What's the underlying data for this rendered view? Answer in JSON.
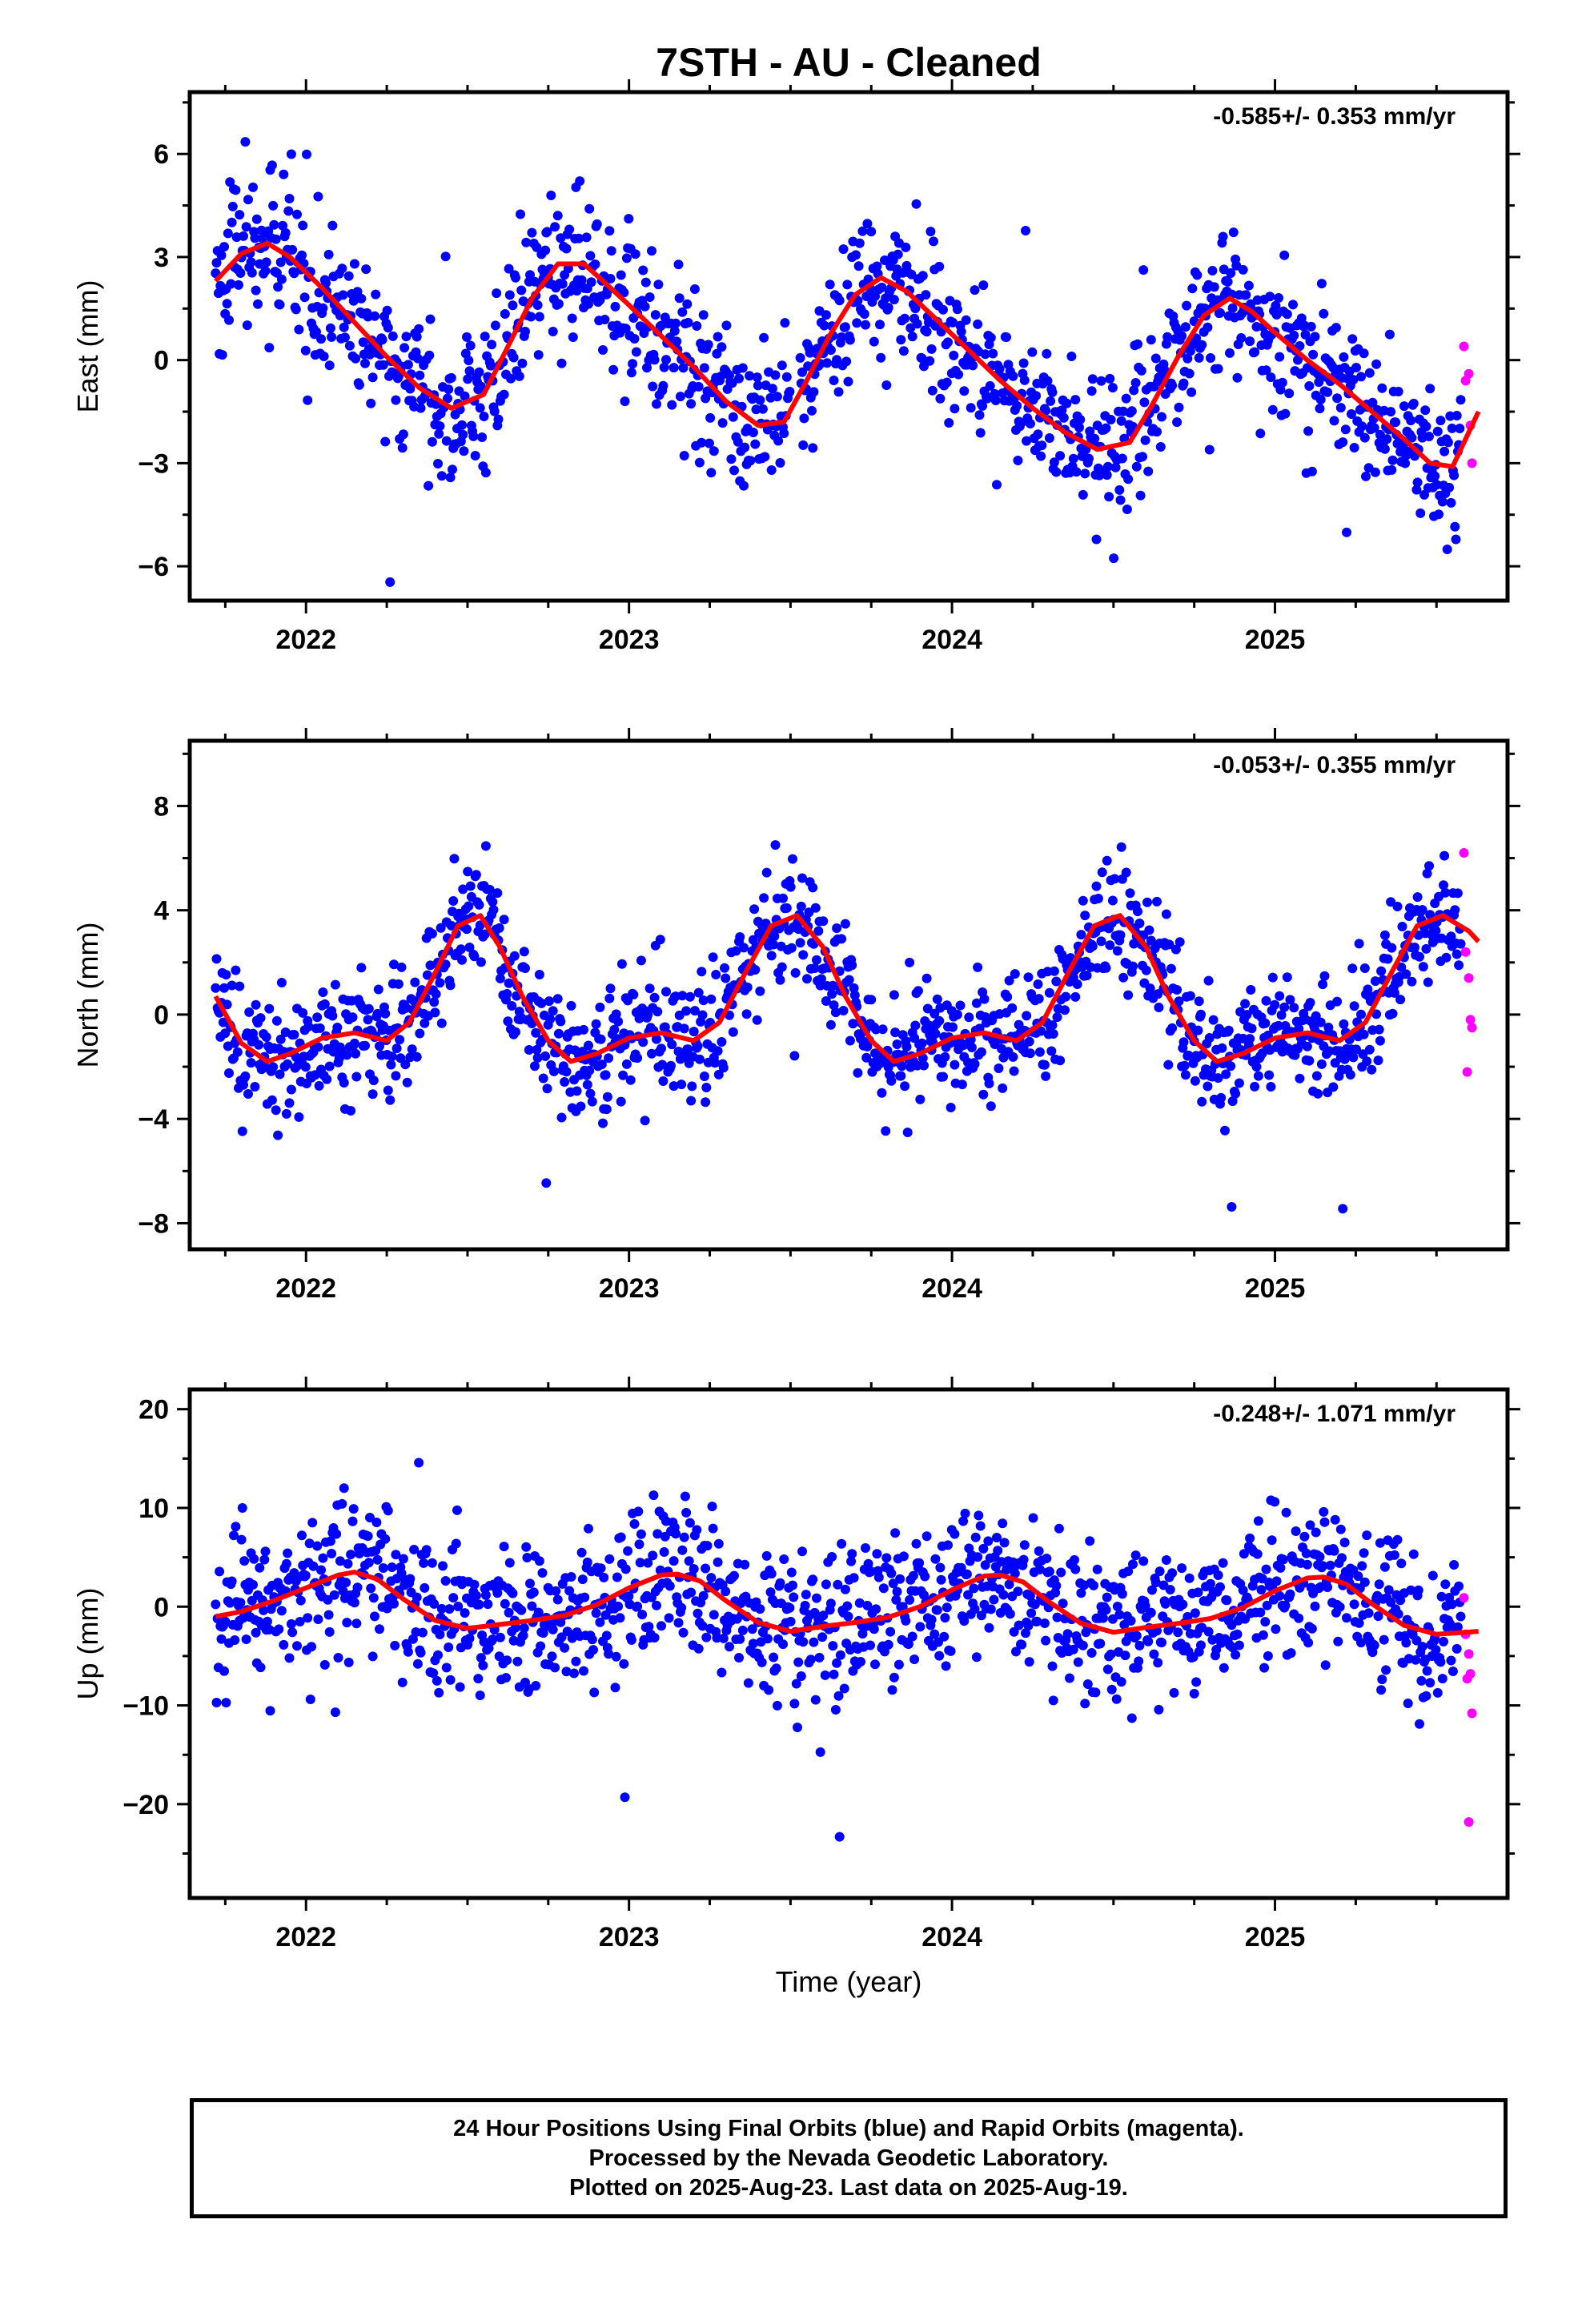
{
  "title": "7STH  - AU - Cleaned",
  "x_axis_label": "Time (year)",
  "footer": {
    "line1": "24 Hour Positions Using Final Orbits (blue) and Rapid Orbits (magenta).",
    "line2": "Processed by the Nevada Geodetic Laboratory.",
    "line3": "Plotted on 2025-Aug-23. Last data on 2025-Aug-19."
  },
  "colors": {
    "final": "#0000ff",
    "rapid": "#ff00ff",
    "model": "#ff0000",
    "axes": "#000000"
  },
  "chart_data": [
    {
      "type": "scatter",
      "component": "East",
      "ylabel": "East (mm)",
      "rate_text": "-0.585+/- 0.353 mm/yr",
      "xlim": [
        2021.64,
        2025.72
      ],
      "ylim": [
        -7,
        7.8
      ],
      "xticks": [
        2022,
        2023,
        2024,
        2025
      ],
      "yticks": [
        -6,
        -3,
        0,
        3,
        6
      ],
      "model": {
        "x": [
          2021.72,
          2021.8,
          2021.88,
          2021.95,
          2022.05,
          2022.15,
          2022.25,
          2022.35,
          2022.45,
          2022.55,
          2022.62,
          2022.7,
          2022.78,
          2022.86,
          2022.92,
          2023.0,
          2023.1,
          2023.2,
          2023.3,
          2023.4,
          2023.48,
          2023.55,
          2023.62,
          2023.7,
          2023.78,
          2023.86,
          2023.95,
          2024.05,
          2024.15,
          2024.25,
          2024.35,
          2024.45,
          2024.55,
          2024.62,
          2024.7,
          2024.78,
          2024.86,
          2024.93,
          2025.0,
          2025.1,
          2025.2,
          2025.3,
          2025.4,
          2025.48,
          2025.55,
          2025.63
        ],
        "y": [
          2.3,
          3.1,
          3.4,
          3.0,
          2.1,
          1.1,
          0.1,
          -0.8,
          -1.4,
          -1.0,
          0.3,
          1.8,
          2.8,
          2.8,
          2.3,
          1.6,
          0.7,
          -0.2,
          -1.2,
          -1.9,
          -1.8,
          -0.6,
          0.7,
          1.9,
          2.4,
          2.0,
          1.2,
          0.3,
          -0.6,
          -1.4,
          -2.1,
          -2.6,
          -2.4,
          -1.3,
          0.1,
          1.3,
          1.8,
          1.4,
          0.8,
          0.0,
          -0.7,
          -1.5,
          -2.3,
          -3.0,
          -3.1,
          -1.5
        ]
      },
      "final_pattern": {
        "x_start": 2021.72,
        "x_end": 2025.575,
        "amp": 2.6,
        "period": 1.0,
        "phase": 2021.85,
        "trend": -0.585,
        "noise": 1.05,
        "count": 1300
      },
      "rapid": {
        "x": [
          2025.585,
          2025.59,
          2025.6,
          2025.605,
          2025.61
        ],
        "y": [
          0.4,
          -0.6,
          -0.4,
          -1.9,
          -3.0
        ]
      }
    },
    {
      "type": "scatter",
      "component": "North",
      "ylabel": "North (mm)",
      "rate_text": "-0.053+/- 0.355 mm/yr",
      "xlim": [
        2021.64,
        2025.72
      ],
      "ylim": [
        -9,
        10.5
      ],
      "xticks": [
        2022,
        2023,
        2024,
        2025
      ],
      "yticks": [
        -8,
        -4,
        0,
        4,
        8
      ],
      "model": {
        "x": [
          2021.72,
          2021.8,
          2021.88,
          2021.95,
          2022.05,
          2022.15,
          2022.25,
          2022.32,
          2022.4,
          2022.47,
          2022.54,
          2022.6,
          2022.67,
          2022.75,
          2022.82,
          2022.9,
          2023.0,
          2023.1,
          2023.2,
          2023.28,
          2023.36,
          2023.44,
          2023.52,
          2023.6,
          2023.67,
          2023.75,
          2023.82,
          2023.9,
          2024.0,
          2024.1,
          2024.2,
          2024.28,
          2024.36,
          2024.44,
          2024.52,
          2024.6,
          2024.67,
          2024.75,
          2024.82,
          2024.9,
          2025.0,
          2025.1,
          2025.2,
          2025.28,
          2025.36,
          2025.44,
          2025.52,
          2025.6,
          2025.63
        ],
        "y": [
          0.7,
          -1.1,
          -1.8,
          -1.5,
          -0.9,
          -0.7,
          -1.0,
          -0.3,
          1.6,
          3.4,
          3.8,
          2.6,
          0.7,
          -1.0,
          -1.8,
          -1.5,
          -0.9,
          -0.7,
          -1.0,
          -0.3,
          1.6,
          3.4,
          3.8,
          2.6,
          0.7,
          -1.0,
          -1.8,
          -1.5,
          -0.9,
          -0.7,
          -1.0,
          -0.3,
          1.6,
          3.4,
          3.8,
          2.6,
          0.7,
          -1.0,
          -1.8,
          -1.5,
          -0.9,
          -0.7,
          -1.0,
          -0.3,
          1.6,
          3.4,
          3.8,
          3.2,
          2.8
        ]
      },
      "final_pattern": {
        "x_start": 2021.72,
        "x_end": 2025.575,
        "amp": 2.6,
        "period": 1.0,
        "phase": 2022.3,
        "trend": -0.053,
        "noise": 1.15,
        "count": 1300
      },
      "rapid": {
        "x": [
          2025.585,
          2025.59,
          2025.6,
          2025.605,
          2025.61,
          2025.595
        ],
        "y": [
          6.2,
          2.4,
          1.4,
          -0.2,
          -0.5,
          -2.2
        ]
      }
    },
    {
      "type": "scatter",
      "component": "Up",
      "ylabel": "Up (mm)",
      "rate_text": "-0.248+/- 1.071 mm/yr",
      "xlim": [
        2021.64,
        2025.72
      ],
      "ylim": [
        -29.5,
        22
      ],
      "xticks": [
        2022,
        2023,
        2024,
        2025
      ],
      "yticks": [
        -20,
        -10,
        0,
        10,
        20
      ],
      "model": {
        "x": [
          2021.72,
          2021.8,
          2021.9,
          2022.0,
          2022.1,
          2022.15,
          2022.22,
          2022.3,
          2022.4,
          2022.5,
          2022.6,
          2022.7,
          2022.8,
          2022.9,
          2023.0,
          2023.1,
          2023.15,
          2023.22,
          2023.3,
          2023.4,
          2023.5,
          2023.6,
          2023.7,
          2023.8,
          2023.9,
          2024.0,
          2024.1,
          2024.15,
          2024.22,
          2024.3,
          2024.4,
          2024.5,
          2024.6,
          2024.7,
          2024.8,
          2024.9,
          2025.0,
          2025.1,
          2025.15,
          2025.22,
          2025.3,
          2025.4,
          2025.5,
          2025.63
        ],
        "y": [
          -1.0,
          -0.5,
          0.6,
          1.9,
          3.2,
          3.5,
          2.8,
          0.8,
          -1.4,
          -2.2,
          -1.8,
          -1.4,
          -0.9,
          0.2,
          1.9,
          3.2,
          3.3,
          2.6,
          0.6,
          -1.6,
          -2.5,
          -2.0,
          -1.6,
          -1.1,
          0.0,
          1.7,
          3.1,
          3.2,
          2.5,
          0.5,
          -1.7,
          -2.6,
          -2.1,
          -1.7,
          -1.2,
          -0.1,
          1.6,
          2.9,
          3.0,
          2.3,
          0.3,
          -1.9,
          -2.8,
          -2.5
        ]
      },
      "final_pattern": {
        "x_start": 2021.72,
        "x_end": 2025.575,
        "amp": 2.9,
        "period": 1.0,
        "phase": 2021.88,
        "trend": -0.248,
        "noise": 3.8,
        "count": 1300
      },
      "rapid": {
        "x": [
          2025.585,
          2025.59,
          2025.6,
          2025.605,
          2025.61,
          2025.595,
          2025.6
        ],
        "y": [
          0.9,
          -2.8,
          -4.8,
          -6.8,
          -10.8,
          -7.3,
          -21.8
        ]
      }
    }
  ]
}
